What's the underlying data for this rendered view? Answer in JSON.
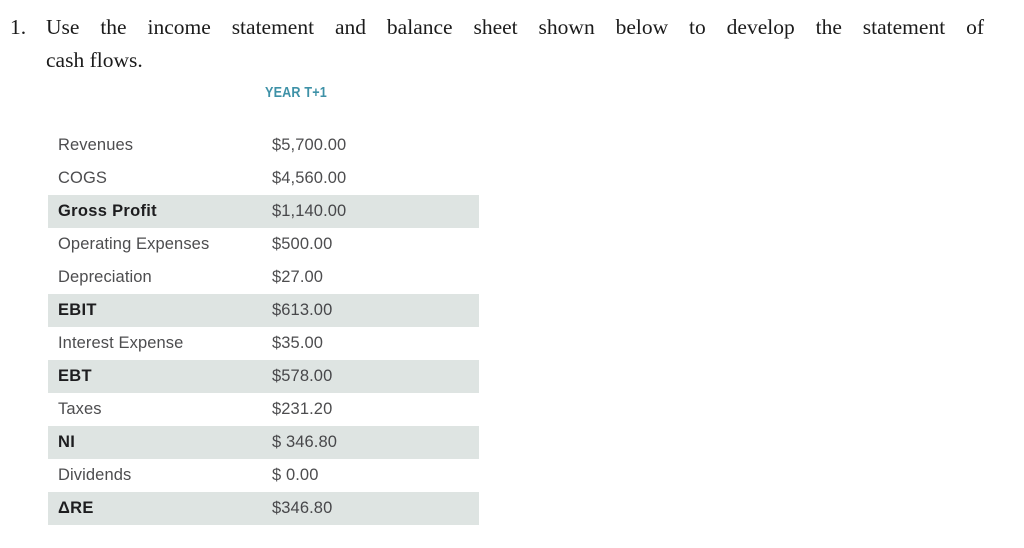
{
  "page": {
    "item_number": "1.",
    "prompt_line1": "Use the income statement and balance sheet shown below to develop the statement of",
    "prompt_line2": "cash flows."
  },
  "table": {
    "header": "YEAR T+1",
    "rows": [
      {
        "label": "Revenues",
        "value": "$5,700.00",
        "emphasis": false,
        "highlighted": false
      },
      {
        "label": "COGS",
        "value": "$4,560.00",
        "emphasis": false,
        "highlighted": false
      },
      {
        "label": "Gross Profit",
        "value": "$1,140.00",
        "emphasis": true,
        "highlighted": true
      },
      {
        "label": "Operating Expenses",
        "value": "$500.00",
        "emphasis": false,
        "highlighted": false
      },
      {
        "label": "Depreciation",
        "value": "$27.00",
        "emphasis": false,
        "highlighted": false
      },
      {
        "label": "EBIT",
        "value": "$613.00",
        "emphasis": true,
        "highlighted": true
      },
      {
        "label": "Interest Expense",
        "value": "$35.00",
        "emphasis": false,
        "highlighted": false
      },
      {
        "label": "EBT",
        "value": "$578.00",
        "emphasis": true,
        "highlighted": true
      },
      {
        "label": "Taxes",
        "value": "$231.20",
        "emphasis": false,
        "highlighted": false
      },
      {
        "label": "NI",
        "value": "$ 346.80",
        "emphasis": true,
        "highlighted": true
      },
      {
        "label": "Dividends",
        "value": "$ 0.00",
        "emphasis": false,
        "highlighted": false
      },
      {
        "label": "ΔRE",
        "value": "$346.80",
        "emphasis": true,
        "highlighted": true
      }
    ],
    "colors": {
      "header_teal": "#3e91a7",
      "row_highlight": "#dee4e2"
    }
  }
}
